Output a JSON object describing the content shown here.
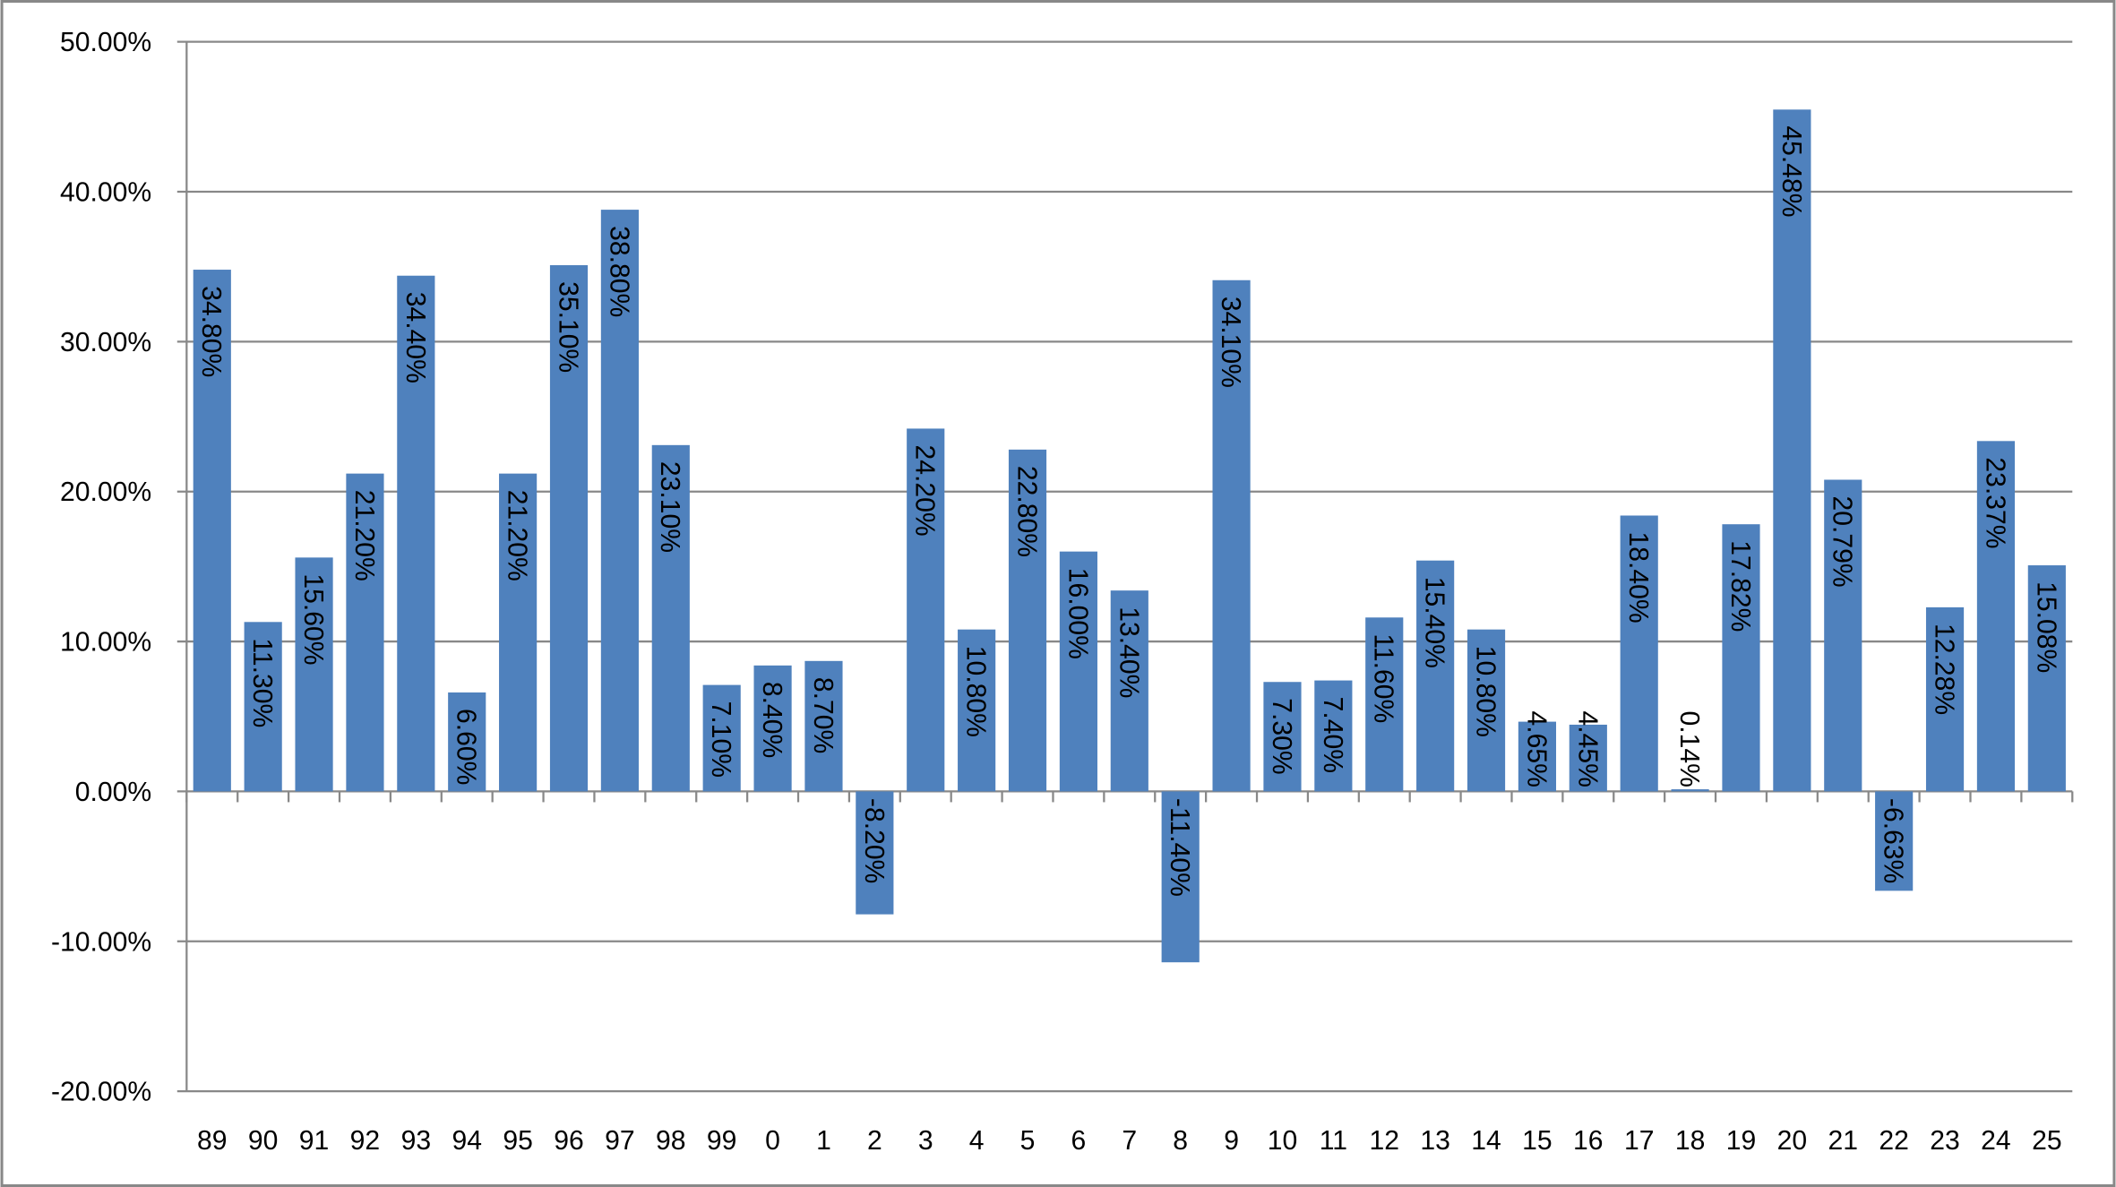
{
  "chart_data": {
    "type": "bar",
    "categories": [
      "89",
      "90",
      "91",
      "92",
      "93",
      "94",
      "95",
      "96",
      "97",
      "98",
      "99",
      "0",
      "1",
      "2",
      "3",
      "4",
      "5",
      "6",
      "7",
      "8",
      "9",
      "10",
      "11",
      "12",
      "13",
      "14",
      "15",
      "16",
      "17",
      "18",
      "19",
      "20",
      "21",
      "22",
      "23",
      "24",
      "25"
    ],
    "values": [
      34.8,
      11.3,
      15.6,
      21.2,
      34.4,
      6.6,
      21.2,
      35.1,
      38.8,
      23.1,
      7.1,
      8.4,
      8.7,
      -8.2,
      24.2,
      10.8,
      22.8,
      16.0,
      13.4,
      -11.4,
      34.1,
      7.3,
      7.4,
      11.6,
      15.4,
      10.8,
      4.65,
      4.45,
      18.4,
      0.14,
      17.82,
      45.48,
      20.79,
      -6.63,
      12.28,
      23.37,
      15.08
    ],
    "value_labels": [
      "34.80%",
      "11.30%",
      "15.60%",
      "21.20%",
      "34.40%",
      "6.60%",
      "21.20%",
      "35.10%",
      "38.80%",
      "23.10%",
      "7.10%",
      "8.40%",
      "8.70%",
      "-8.20%",
      "24.20%",
      "10.80%",
      "22.80%",
      "16.00%",
      "13.40%",
      "-11.40%",
      "34.10%",
      "7.30%",
      "7.40%",
      "11.60%",
      "15.40%",
      "10.80%",
      "4.65%",
      "4.45%",
      "18.40%",
      "0.14%",
      "17.82%",
      "45.48%",
      "20.79%",
      "-6.63%",
      "12.28%",
      "23.37%",
      "15.08%"
    ],
    "color": "#4f81bd",
    "ylim": [
      -20,
      50
    ],
    "yticks": [
      {
        "value": -20,
        "label": "-20.00%"
      },
      {
        "value": -10,
        "label": "-10.00%"
      },
      {
        "value": 0,
        "label": "0.00%"
      },
      {
        "value": 10,
        "label": "10.00%"
      },
      {
        "value": 20,
        "label": "20.00%"
      },
      {
        "value": 30,
        "label": "30.00%"
      },
      {
        "value": 40,
        "label": "40.00%"
      },
      {
        "value": 50,
        "label": "50.00%"
      }
    ],
    "grid": true
  }
}
